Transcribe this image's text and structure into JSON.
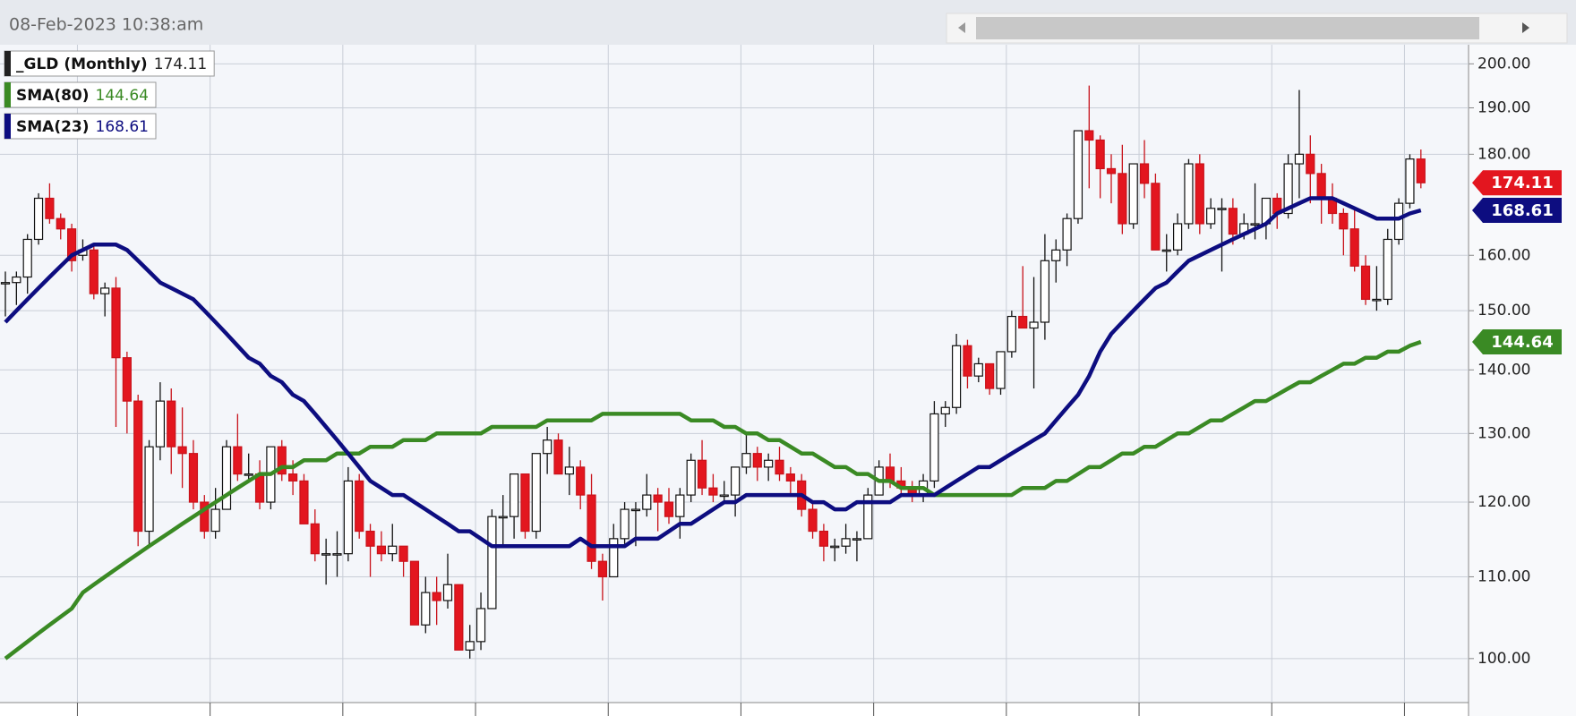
{
  "chart_data": {
    "type": "candlestick",
    "timestamp": "08-Feb-2023 10:38:am",
    "name": "_GLD (Monthly)",
    "up_color": "#ffffff",
    "down_color": "#e3161f",
    "open": [
      155,
      155,
      156,
      163,
      171,
      167,
      165,
      160,
      161,
      153,
      154,
      142,
      135,
      116,
      128,
      135,
      128,
      127,
      120,
      116,
      119,
      128,
      124,
      124,
      120,
      128,
      124,
      123,
      117,
      113,
      113,
      113,
      123,
      116,
      114,
      113,
      114,
      112,
      104,
      108,
      107,
      109,
      101,
      102,
      106,
      118,
      118,
      124,
      116,
      127,
      129,
      124,
      125,
      121,
      112,
      110,
      115,
      119,
      119,
      121,
      120,
      118,
      121,
      126,
      122,
      121,
      121,
      125,
      127,
      125,
      126,
      124,
      123,
      119,
      116,
      114,
      114,
      115,
      115,
      121,
      125,
      123,
      122,
      121,
      123,
      133,
      134,
      144,
      139,
      141,
      137,
      143,
      149,
      147,
      148,
      159,
      161,
      167,
      185,
      183,
      177,
      176,
      166,
      178,
      174,
      161,
      161,
      166,
      178,
      166,
      169,
      169,
      164,
      166,
      166,
      171,
      168,
      178,
      180,
      176,
      171,
      168,
      165,
      158,
      152,
      152,
      163,
      170,
      179
    ],
    "high": [
      157,
      157,
      164,
      172,
      174,
      168,
      166,
      163,
      162,
      155,
      156,
      143,
      136,
      129,
      138,
      137,
      134,
      129,
      121,
      122,
      129,
      133,
      127,
      126,
      128,
      129,
      126,
      124,
      119,
      115,
      116,
      125,
      124,
      117,
      116,
      117,
      114,
      112,
      110,
      110,
      113,
      109,
      104,
      108,
      119,
      121,
      124,
      124,
      127,
      131,
      130,
      128,
      126,
      124,
      113,
      117,
      120,
      120,
      124,
      122,
      122,
      122,
      127,
      129,
      124,
      123,
      125,
      130,
      128,
      127,
      128,
      125,
      124,
      120,
      117,
      115,
      117,
      116,
      122,
      126,
      127,
      125,
      123,
      124,
      135,
      135,
      146,
      145,
      142,
      141,
      143,
      150,
      158,
      156,
      164,
      163,
      168,
      185,
      195,
      184,
      180,
      182,
      178,
      183,
      176,
      164,
      168,
      179,
      180,
      171,
      171,
      171,
      168,
      174,
      171,
      172,
      180,
      194,
      184,
      178,
      174,
      169,
      169,
      160,
      158,
      165,
      171,
      180,
      181
    ],
    "low": [
      149,
      151,
      153,
      162,
      166,
      163,
      157,
      159,
      152,
      149,
      131,
      130,
      114,
      114,
      126,
      124,
      122,
      119,
      115,
      115,
      119,
      123,
      123,
      119,
      119,
      123,
      121,
      117,
      112,
      109,
      110,
      112,
      115,
      110,
      112,
      112,
      110,
      104,
      103,
      104,
      106,
      101,
      100,
      101,
      106,
      114,
      115,
      115,
      115,
      124,
      124,
      121,
      119,
      111,
      107,
      110,
      114,
      114,
      118,
      116,
      117,
      115,
      120,
      121,
      120,
      120,
      118,
      124,
      123,
      123,
      123,
      121,
      118,
      115,
      112,
      112,
      113,
      112,
      115,
      121,
      122,
      121,
      120,
      120,
      122,
      131,
      133,
      137,
      138,
      136,
      136,
      142,
      147,
      137,
      145,
      155,
      158,
      166,
      173,
      171,
      170,
      164,
      165,
      171,
      161,
      157,
      160,
      165,
      164,
      165,
      157,
      162,
      163,
      163,
      163,
      165,
      167,
      171,
      170,
      166,
      166,
      160,
      157,
      151,
      150,
      151,
      162,
      169,
      173
    ],
    "close": [
      155,
      156,
      163,
      171,
      167,
      165,
      159,
      161,
      153,
      154,
      142,
      135,
      116,
      128,
      135,
      128,
      127,
      120,
      116,
      119,
      128,
      124,
      124,
      120,
      128,
      124,
      123,
      117,
      113,
      113,
      113,
      123,
      116,
      114,
      113,
      114,
      112,
      104,
      108,
      107,
      109,
      101,
      102,
      106,
      118,
      118,
      124,
      116,
      127,
      129,
      124,
      125,
      121,
      112,
      110,
      115,
      119,
      119,
      121,
      120,
      118,
      121,
      126,
      122,
      121,
      121,
      125,
      127,
      125,
      126,
      124,
      123,
      119,
      116,
      114,
      114,
      115,
      115,
      121,
      125,
      123,
      122,
      121,
      123,
      133,
      134,
      144,
      139,
      141,
      137,
      143,
      149,
      147,
      148,
      159,
      161,
      167,
      185,
      183,
      177,
      176,
      166,
      178,
      174,
      161,
      161,
      166,
      178,
      166,
      169,
      169,
      164,
      166,
      166,
      171,
      168,
      178,
      180,
      176,
      171,
      168,
      165,
      158,
      152,
      152,
      163,
      170,
      179,
      174.11
    ],
    "overlays": [
      {
        "name": "SMA(80)",
        "color": "#3a8a24",
        "values": [
          100,
          101,
          102,
          103,
          104,
          105,
          106,
          108,
          109,
          110,
          111,
          112,
          113,
          114,
          115,
          116,
          117,
          118,
          119,
          120,
          121,
          122,
          123,
          124,
          124,
          125,
          125,
          126,
          126,
          126,
          127,
          127,
          127,
          128,
          128,
          128,
          129,
          129,
          129,
          130,
          130,
          130,
          130,
          130,
          131,
          131,
          131,
          131,
          131,
          132,
          132,
          132,
          132,
          132,
          133,
          133,
          133,
          133,
          133,
          133,
          133,
          133,
          132,
          132,
          132,
          131,
          131,
          130,
          130,
          129,
          129,
          128,
          127,
          127,
          126,
          125,
          125,
          124,
          124,
          123,
          123,
          122,
          122,
          122,
          121,
          121,
          121,
          121,
          121,
          121,
          121,
          121,
          122,
          122,
          122,
          123,
          123,
          124,
          125,
          125,
          126,
          127,
          127,
          128,
          128,
          129,
          130,
          130,
          131,
          132,
          132,
          133,
          134,
          135,
          135,
          136,
          137,
          138,
          138,
          139,
          140,
          141,
          141,
          142,
          142,
          143,
          143,
          144,
          144.64
        ]
      },
      {
        "name": "SMA(23)",
        "color": "#0d0d80",
        "values": [
          148,
          150,
          152,
          154,
          156,
          158,
          160,
          161,
          162,
          162,
          162,
          161,
          159,
          157,
          155,
          154,
          153,
          152,
          150,
          148,
          146,
          144,
          142,
          141,
          139,
          138,
          136,
          135,
          133,
          131,
          129,
          127,
          125,
          123,
          122,
          121,
          121,
          120,
          119,
          118,
          117,
          116,
          116,
          115,
          114,
          114,
          114,
          114,
          114,
          114,
          114,
          114,
          115,
          114,
          114,
          114,
          114,
          115,
          115,
          115,
          116,
          117,
          117,
          118,
          119,
          120,
          120,
          121,
          121,
          121,
          121,
          121,
          121,
          120,
          120,
          119,
          119,
          120,
          120,
          120,
          120,
          121,
          121,
          121,
          121,
          122,
          123,
          124,
          125,
          125,
          126,
          127,
          128,
          129,
          130,
          132,
          134,
          136,
          139,
          143,
          146,
          148,
          150,
          152,
          154,
          155,
          157,
          159,
          160,
          161,
          162,
          163,
          164,
          165,
          166,
          168,
          169,
          170,
          171,
          171,
          171,
          170,
          169,
          168,
          167,
          167,
          167,
          168,
          168.61
        ]
      }
    ],
    "ylim": [
      95.2,
      204.5
    ],
    "log_scale": true,
    "yticks": [
      {
        "value": 100,
        "label": "100.00"
      },
      {
        "value": 110,
        "label": "110.00"
      },
      {
        "value": 120,
        "label": "120.00"
      },
      {
        "value": 130,
        "label": "130.00"
      },
      {
        "value": 140,
        "label": "140.00"
      },
      {
        "value": 150,
        "label": "150.00"
      },
      {
        "value": 160,
        "label": "160.00"
      },
      {
        "value": 180,
        "label": "180.00"
      },
      {
        "value": 190,
        "label": "190.00"
      },
      {
        "value": 200,
        "label": "200.00"
      }
    ],
    "grid": true
  }
}
